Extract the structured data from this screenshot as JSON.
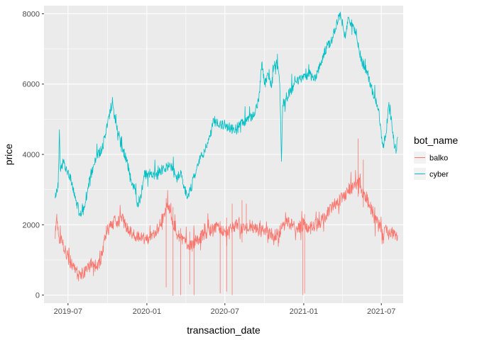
{
  "chart_data": {
    "type": "line",
    "xlabel": "transaction_date",
    "ylabel": "price",
    "x_range": [
      "2019-05-06",
      "2021-08-21"
    ],
    "ylim": [
      -230,
      8230
    ],
    "x_ticks": [
      {
        "date": "2019-07-01",
        "label": "2019-07"
      },
      {
        "date": "2020-01-01",
        "label": "2020-01"
      },
      {
        "date": "2020-07-01",
        "label": "2020-07"
      },
      {
        "date": "2021-01-01",
        "label": "2021-01"
      },
      {
        "date": "2021-07-01",
        "label": "2021-07"
      }
    ],
    "y_ticks": [
      0,
      2000,
      4000,
      6000,
      8000
    ],
    "grid": true,
    "legend": {
      "title": "bot_name",
      "position": "right"
    },
    "series": [
      {
        "name": "cyber",
        "color": "#00BFC4",
        "points": [
          [
            "2019-06-01",
            2750
          ],
          [
            "2019-06-08",
            3050
          ],
          [
            "2019-06-11",
            4700
          ],
          [
            "2019-06-13",
            3600
          ],
          [
            "2019-06-20",
            3750
          ],
          [
            "2019-06-28",
            3550
          ],
          [
            "2019-07-08",
            3300
          ],
          [
            "2019-07-20",
            2700
          ],
          [
            "2019-07-30",
            2250
          ],
          [
            "2019-08-10",
            2600
          ],
          [
            "2019-08-20",
            3300
          ],
          [
            "2019-09-05",
            3900
          ],
          [
            "2019-09-20",
            4200
          ],
          [
            "2019-09-28",
            4700
          ],
          [
            "2019-10-05",
            5150
          ],
          [
            "2019-10-12",
            5450
          ],
          [
            "2019-10-20",
            4900
          ],
          [
            "2019-11-01",
            4300
          ],
          [
            "2019-11-15",
            3800
          ],
          [
            "2019-11-25",
            3300
          ],
          [
            "2019-12-02",
            3050
          ],
          [
            "2019-12-10",
            2600
          ],
          [
            "2019-12-18",
            2800
          ],
          [
            "2019-12-25",
            3400
          ],
          [
            "2020-01-10",
            3500
          ],
          [
            "2020-01-25",
            3400
          ],
          [
            "2020-02-10",
            3600
          ],
          [
            "2020-02-25",
            3700
          ],
          [
            "2020-03-05",
            3600
          ],
          [
            "2020-03-12",
            3300
          ],
          [
            "2020-03-20",
            3550
          ],
          [
            "2020-03-28",
            3050
          ],
          [
            "2020-04-05",
            2800
          ],
          [
            "2020-04-12",
            3000
          ],
          [
            "2020-04-20",
            3350
          ],
          [
            "2020-05-01",
            3800
          ],
          [
            "2020-05-15",
            4100
          ],
          [
            "2020-05-28",
            4500
          ],
          [
            "2020-06-05",
            5000
          ],
          [
            "2020-06-15",
            4800
          ],
          [
            "2020-07-01",
            4850
          ],
          [
            "2020-07-20",
            4700
          ],
          [
            "2020-08-05",
            4850
          ],
          [
            "2020-08-20",
            4950
          ],
          [
            "2020-09-05",
            5100
          ],
          [
            "2020-09-18",
            5500
          ],
          [
            "2020-09-25",
            6600
          ],
          [
            "2020-10-02",
            6000
          ],
          [
            "2020-10-10",
            6300
          ],
          [
            "2020-10-18",
            5900
          ],
          [
            "2020-10-23",
            6500
          ],
          [
            "2020-10-28",
            6600
          ],
          [
            "2020-11-02",
            6500
          ],
          [
            "2020-11-06",
            6000
          ],
          [
            "2020-11-10",
            3800
          ],
          [
            "2020-11-13",
            5400
          ],
          [
            "2020-11-20",
            5600
          ],
          [
            "2020-12-01",
            5800
          ],
          [
            "2020-12-15",
            6050
          ],
          [
            "2021-01-01",
            6200
          ],
          [
            "2021-01-15",
            6300
          ],
          [
            "2021-01-25",
            6100
          ],
          [
            "2021-02-10",
            6600
          ],
          [
            "2021-02-25",
            7100
          ],
          [
            "2021-03-05",
            7200
          ],
          [
            "2021-03-15",
            7500
          ],
          [
            "2021-03-20",
            7750
          ],
          [
            "2021-03-25",
            8000
          ],
          [
            "2021-04-02",
            7700
          ],
          [
            "2021-04-08",
            7300
          ],
          [
            "2021-04-15",
            7900
          ],
          [
            "2021-04-25",
            7700
          ],
          [
            "2021-05-03",
            7500
          ],
          [
            "2021-05-10",
            7000
          ],
          [
            "2021-05-18",
            6600
          ],
          [
            "2021-05-28",
            6400
          ],
          [
            "2021-06-05",
            6000
          ],
          [
            "2021-06-15",
            5600
          ],
          [
            "2021-06-25",
            5300
          ],
          [
            "2021-07-02",
            4500
          ],
          [
            "2021-07-05",
            4200
          ],
          [
            "2021-07-12",
            4600
          ],
          [
            "2021-07-18",
            5400
          ],
          [
            "2021-07-25",
            5000
          ],
          [
            "2021-08-01",
            4200
          ],
          [
            "2021-08-05",
            4100
          ],
          [
            "2021-08-08",
            4500
          ]
        ]
      },
      {
        "name": "balko",
        "color": "#F8766D",
        "points": [
          [
            "2019-06-01",
            1600
          ],
          [
            "2019-06-04",
            2150
          ],
          [
            "2019-06-10",
            1650
          ],
          [
            "2019-06-18",
            1500
          ],
          [
            "2019-06-26",
            1200
          ],
          [
            "2019-07-05",
            950
          ],
          [
            "2019-07-15",
            800
          ],
          [
            "2019-07-25",
            580
          ],
          [
            "2019-08-05",
            620
          ],
          [
            "2019-08-15",
            760
          ],
          [
            "2019-08-25",
            880
          ],
          [
            "2019-09-05",
            820
          ],
          [
            "2019-09-15",
            950
          ],
          [
            "2019-09-22",
            1500
          ],
          [
            "2019-09-30",
            1800
          ],
          [
            "2019-10-10",
            2000
          ],
          [
            "2019-10-20",
            2100
          ],
          [
            "2019-11-01",
            2200
          ],
          [
            "2019-11-10",
            2050
          ],
          [
            "2019-11-20",
            1800
          ],
          [
            "2019-12-01",
            1700
          ],
          [
            "2019-12-15",
            1650
          ],
          [
            "2020-01-01",
            1600
          ],
          [
            "2020-01-15",
            1750
          ],
          [
            "2020-02-01",
            2000
          ],
          [
            "2020-02-10",
            2300
          ],
          [
            "2020-02-20",
            2550
          ],
          [
            "2020-03-01",
            2100
          ],
          [
            "2020-03-10",
            1700
          ],
          [
            "2020-03-20",
            1650
          ],
          [
            "2020-04-01",
            1500
          ],
          [
            "2020-04-15",
            1450
          ],
          [
            "2020-05-01",
            1600
          ],
          [
            "2020-05-15",
            1750
          ],
          [
            "2020-06-01",
            1850
          ],
          [
            "2020-06-15",
            1950
          ],
          [
            "2020-07-01",
            1800
          ],
          [
            "2020-07-15",
            1900
          ],
          [
            "2020-08-01",
            2000
          ],
          [
            "2020-08-15",
            1850
          ],
          [
            "2020-09-01",
            2000
          ],
          [
            "2020-09-15",
            1850
          ],
          [
            "2020-10-01",
            1800
          ],
          [
            "2020-10-15",
            1750
          ],
          [
            "2020-11-01",
            1700
          ],
          [
            "2020-11-15",
            2000
          ],
          [
            "2020-12-01",
            2050
          ],
          [
            "2020-12-15",
            1900
          ],
          [
            "2021-01-01",
            2000
          ],
          [
            "2021-01-15",
            1900
          ],
          [
            "2021-02-01",
            2000
          ],
          [
            "2021-02-15",
            2150
          ],
          [
            "2021-03-01",
            2400
          ],
          [
            "2021-03-15",
            2600
          ],
          [
            "2021-04-01",
            2750
          ],
          [
            "2021-04-15",
            3000
          ],
          [
            "2021-05-01",
            3100
          ],
          [
            "2021-05-10",
            3300
          ],
          [
            "2021-05-15",
            2900
          ],
          [
            "2021-05-25",
            2850
          ],
          [
            "2021-06-05",
            2500
          ],
          [
            "2021-06-15",
            2250
          ],
          [
            "2021-06-25",
            2000
          ],
          [
            "2021-07-05",
            1750
          ],
          [
            "2021-07-15",
            1850
          ],
          [
            "2021-07-25",
            1800
          ],
          [
            "2021-08-01",
            1750
          ],
          [
            "2021-08-08",
            1700
          ]
        ],
        "spikes": [
          [
            "2020-02-15",
            2750,
            220
          ],
          [
            "2020-03-02",
            2500,
            -20
          ],
          [
            "2020-03-20",
            1900,
            0
          ],
          [
            "2020-04-10",
            1800,
            300
          ],
          [
            "2020-04-20",
            1900,
            0
          ],
          [
            "2020-06-20",
            2100,
            50
          ],
          [
            "2020-07-05",
            2200,
            100
          ],
          [
            "2020-07-18",
            2600,
            0
          ],
          [
            "2020-08-10",
            2700,
            1500
          ],
          [
            "2020-08-20",
            2600,
            1900
          ],
          [
            "2020-12-30",
            2200,
            0
          ],
          [
            "2021-01-03",
            2300,
            50
          ],
          [
            "2021-05-08",
            4450,
            2800
          ],
          [
            "2021-05-20",
            3850,
            2500
          ]
        ]
      }
    ]
  }
}
